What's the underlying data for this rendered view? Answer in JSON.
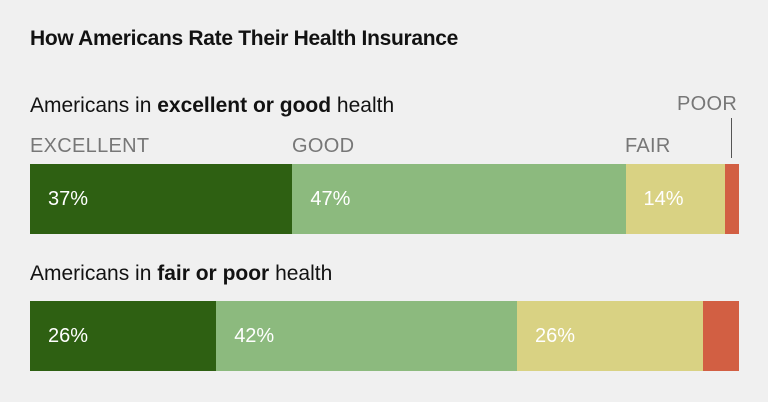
{
  "chart_data": {
    "type": "bar",
    "orientation": "horizontal",
    "stacked": true,
    "title": "How Americans Rate Their Health Insurance",
    "categories": [
      "EXCELLENT",
      "GOOD",
      "FAIR",
      "POOR"
    ],
    "colors": [
      "#2e6012",
      "#8cba7e",
      "#d9d283",
      "#d25f43"
    ],
    "label_colors": [
      "#ffffff",
      "#ffffff",
      "#ffffff",
      "#ffffff"
    ],
    "groups": [
      {
        "label_prefix": "Americans in ",
        "label_bold": "excellent or good",
        "label_suffix": " health",
        "values": [
          37,
          47,
          14,
          2
        ],
        "value_labels": [
          "37%",
          "47%",
          "14%",
          ""
        ]
      },
      {
        "label_prefix": "Americans in ",
        "label_bold": "fair or poor",
        "label_suffix": " health",
        "values": [
          26,
          42,
          26,
          5
        ],
        "value_labels": [
          "26%",
          "42%",
          "26%",
          ""
        ]
      }
    ]
  }
}
